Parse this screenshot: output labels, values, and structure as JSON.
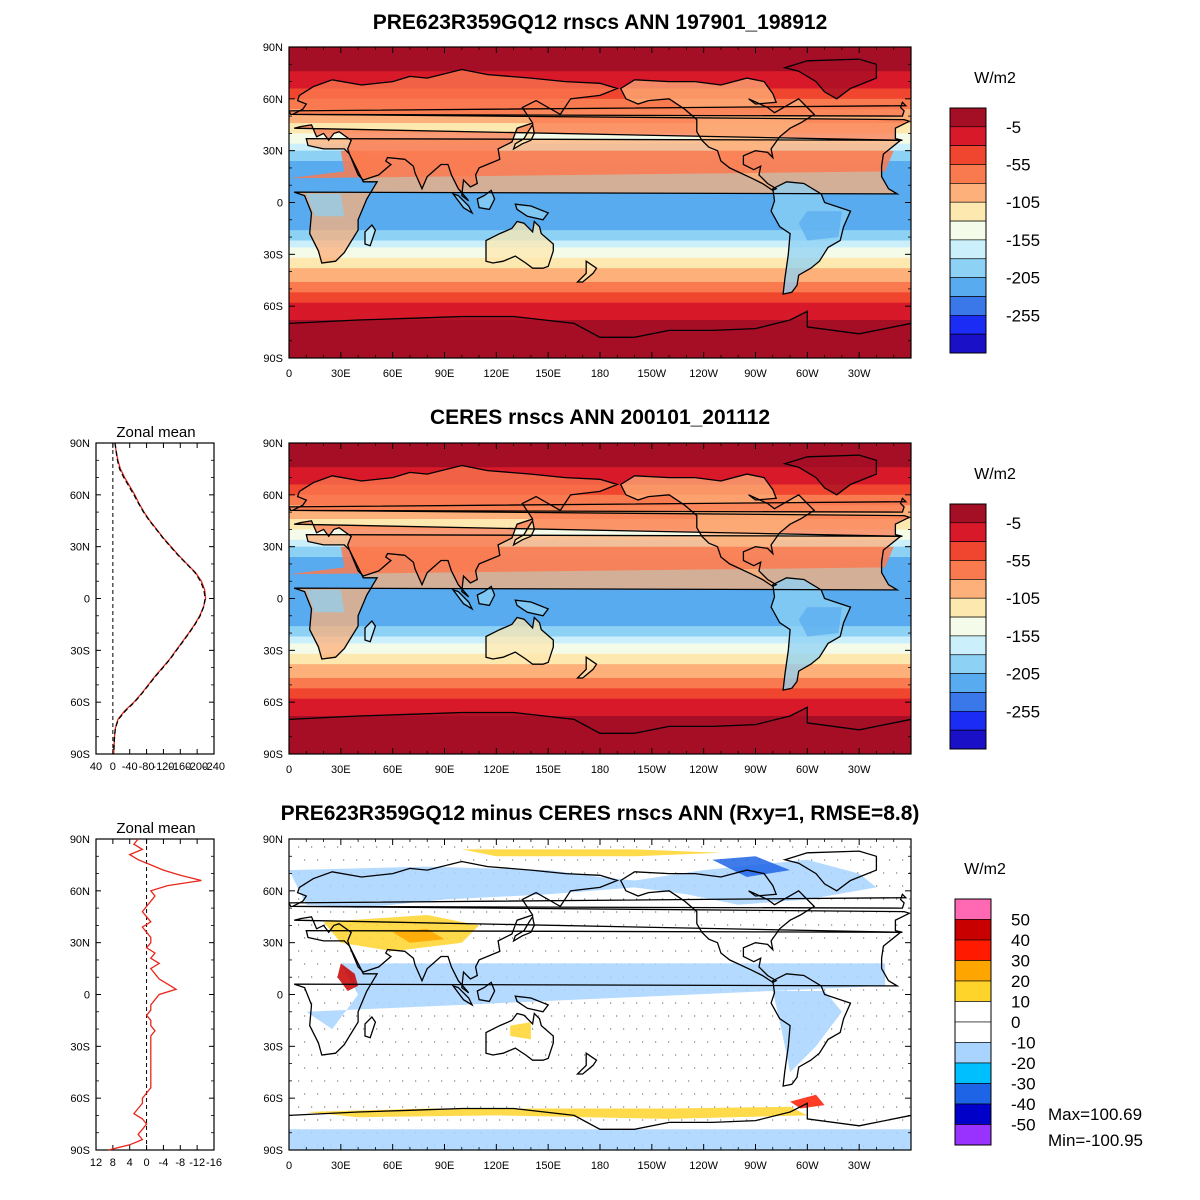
{
  "panels": [
    {
      "id": "model",
      "title": "PRE623R359GQ12 rnscs ANN 197901_198912",
      "units": "W/m2",
      "colorbar": {
        "colors": [
          "#a50f26",
          "#d7192a",
          "#f0462f",
          "#fa7a50",
          "#fdb07a",
          "#fde8b0",
          "#f4fbe8",
          "#cbeffb",
          "#8dd1f5",
          "#59abf0",
          "#3a78ea",
          "#1b2cf5",
          "#1a10c8"
        ],
        "labels": [
          "-5",
          "-55",
          "-105",
          "-155",
          "-205",
          "-255"
        ]
      }
    },
    {
      "id": "obs",
      "title": "CERES rnscs ANN 200101_201112",
      "units": "W/m2",
      "colorbar": {
        "colors": [
          "#a50f26",
          "#d7192a",
          "#f0462f",
          "#fa7a50",
          "#fdb07a",
          "#fde8b0",
          "#f4fbe8",
          "#cbeffb",
          "#8dd1f5",
          "#59abf0",
          "#3a78ea",
          "#1b2cf5",
          "#1a10c8"
        ],
        "labels": [
          "-5",
          "-55",
          "-105",
          "-155",
          "-205",
          "-255"
        ]
      }
    },
    {
      "id": "diff",
      "title": "PRE623R359GQ12 minus CERES rnscs ANN (Rxy=1, RMSE=8.8)",
      "units": "W/m2",
      "colorbar": {
        "colors": [
          "#ff69b4",
          "#c80000",
          "#ff1a00",
          "#ffa500",
          "#ffd42a",
          "#ffffff",
          "#ffffff",
          "#a8d4ff",
          "#00bfff",
          "#1e64e6",
          "#0000c8",
          "#9932ff"
        ],
        "labels": [
          "50",
          "40",
          "30",
          "20",
          "10",
          "0",
          "-10",
          "-20",
          "-30",
          "-40",
          "-50"
        ]
      },
      "stats": {
        "max": "Max=100.69",
        "min": "Min=-100.95"
      }
    }
  ],
  "map_axes": {
    "lon_ticks": [
      "0",
      "30E",
      "60E",
      "90E",
      "120E",
      "150E",
      "180",
      "150W",
      "120W",
      "90W",
      "60W",
      "30W"
    ],
    "lat_ticks": [
      "90N",
      "60N",
      "30N",
      "0",
      "30S",
      "60S",
      "90S"
    ]
  },
  "zonal": [
    {
      "title": "Zonal mean",
      "x_ticks": [
        "40",
        "0",
        "-40",
        "-80",
        "-120",
        "-160",
        "-200",
        "-240"
      ],
      "y_ticks": [
        "90N",
        "60N",
        "30N",
        "0",
        "30S",
        "60S",
        "90S"
      ],
      "xlim": [
        40,
        -240
      ],
      "series": [
        {
          "name": "",
          "color": "#e8261c",
          "dash": "none",
          "lat": [
            90,
            85,
            80,
            75,
            70,
            65,
            60,
            55,
            50,
            45,
            40,
            35,
            30,
            25,
            20,
            15,
            10,
            5,
            0,
            -5,
            -10,
            -15,
            -20,
            -25,
            -30,
            -35,
            -40,
            -45,
            -50,
            -55,
            -60,
            -65,
            -70,
            -75,
            -80,
            -85,
            -90
          ],
          "values": [
            -5,
            -8,
            -12,
            -18,
            -28,
            -40,
            -52,
            -62,
            -74,
            -88,
            -104,
            -120,
            -138,
            -156,
            -176,
            -196,
            -210,
            -218,
            -220,
            -215,
            -206,
            -194,
            -180,
            -165,
            -150,
            -135,
            -118,
            -100,
            -84,
            -68,
            -50,
            -28,
            -12,
            -6,
            -4,
            -3,
            -2
          ]
        },
        {
          "name": "",
          "color": "#000000",
          "dash": "5,3",
          "lat": [
            90,
            85,
            80,
            75,
            70,
            65,
            60,
            55,
            50,
            45,
            40,
            35,
            30,
            25,
            20,
            15,
            10,
            5,
            0,
            -5,
            -10,
            -15,
            -20,
            -25,
            -30,
            -35,
            -40,
            -45,
            -50,
            -55,
            -60,
            -65,
            -70,
            -75,
            -80,
            -85,
            -90
          ],
          "values": [
            -5,
            -8,
            -11,
            -16,
            -26,
            -38,
            -50,
            -61,
            -73,
            -87,
            -103,
            -119,
            -137,
            -155,
            -175,
            -195,
            -208,
            -216,
            -219,
            -215,
            -207,
            -195,
            -181,
            -166,
            -151,
            -136,
            -119,
            -101,
            -85,
            -69,
            -51,
            -30,
            -13,
            -6,
            -4,
            -3,
            -2
          ]
        }
      ]
    },
    {
      "title": "Zonal mean",
      "x_ticks": [
        "12",
        "8",
        "4",
        "0",
        "-4",
        "-8",
        "-12",
        "-16"
      ],
      "y_ticks": [
        "90N",
        "60N",
        "30N",
        "0",
        "30S",
        "60S",
        "90S"
      ],
      "xlim": [
        12,
        -16
      ],
      "series": [
        {
          "name": "",
          "color": "#e8261c",
          "dash": "none",
          "lat": [
            90,
            87,
            84,
            81,
            78,
            75,
            72,
            69,
            66,
            63,
            60,
            57,
            54,
            51,
            48,
            45,
            42,
            39,
            36,
            33,
            30,
            27,
            24,
            21,
            18,
            15,
            12,
            9,
            6,
            3,
            0,
            -3,
            -6,
            -9,
            -12,
            -15,
            -18,
            -21,
            -24,
            -27,
            -30,
            -33,
            -36,
            -39,
            -42,
            -45,
            -48,
            -51,
            -54,
            -57,
            -60,
            -63,
            -66,
            -69,
            -72,
            -75,
            -78,
            -81,
            -84,
            -87,
            -90
          ],
          "values": [
            2,
            3,
            1,
            4,
            2,
            -1,
            -4,
            -8,
            -13,
            -5,
            -1,
            -2,
            -1,
            0,
            1,
            0,
            -1,
            1,
            0,
            -1,
            -1,
            0,
            -2,
            -1,
            -3,
            -1,
            -2,
            -3,
            -5,
            -7,
            -3,
            -2,
            -1,
            -1,
            0,
            -1,
            -1,
            -2,
            -1,
            -1,
            -1,
            -1,
            -1,
            -1,
            -1,
            -1,
            -1,
            -1,
            -1,
            0,
            1,
            1,
            2,
            3,
            1,
            0,
            1,
            2,
            1,
            4,
            9
          ]
        }
      ]
    }
  ]
}
